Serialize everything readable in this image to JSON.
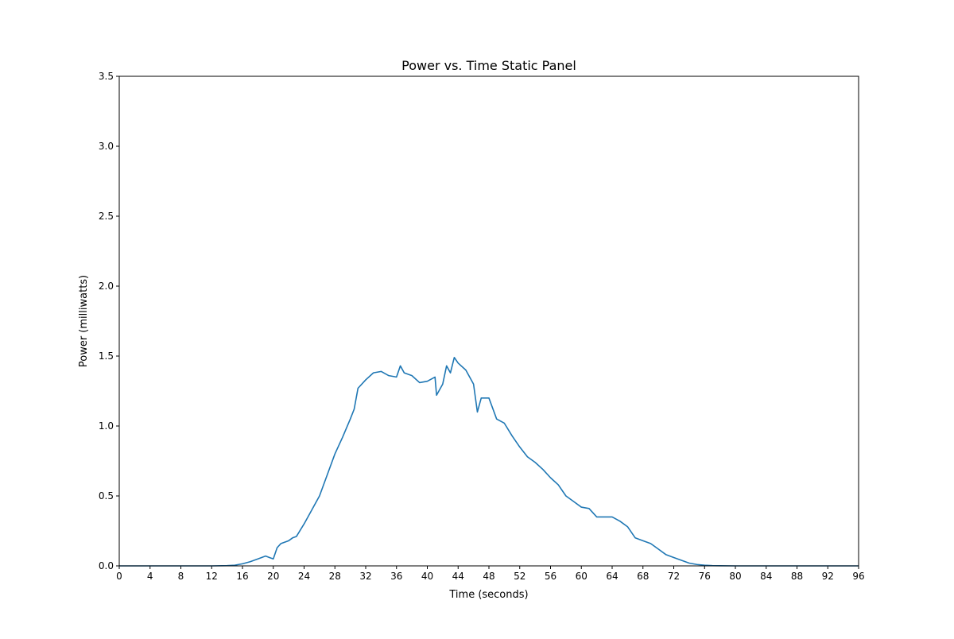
{
  "chart_data": {
    "type": "line",
    "title": "Power vs. Time Static Panel",
    "xlabel": "Time (seconds)",
    "ylabel": "Power (milliwatts)",
    "xlim": [
      0,
      96
    ],
    "ylim": [
      0,
      3.5
    ],
    "xticks": [
      0,
      4,
      8,
      12,
      16,
      20,
      24,
      28,
      32,
      36,
      40,
      44,
      48,
      52,
      56,
      60,
      64,
      68,
      72,
      76,
      80,
      84,
      88,
      92,
      96
    ],
    "xtick_labels": [
      "0",
      "4",
      "8",
      "12",
      "16",
      "20",
      "24",
      "28",
      "32",
      "36",
      "40",
      "44",
      "48",
      "52",
      "56",
      "60",
      "64",
      "68",
      "72",
      "76",
      "80",
      "84",
      "88",
      "92",
      "96"
    ],
    "yticks": [
      0.0,
      0.5,
      1.0,
      1.5,
      2.0,
      2.5,
      3.0,
      3.5
    ],
    "ytick_labels": [
      "0.0",
      "0.5",
      "1.0",
      "1.5",
      "2.0",
      "2.5",
      "3.0",
      "3.5"
    ],
    "grid": false,
    "legend": "none",
    "series": [
      {
        "color": "#1f77b4",
        "x": [
          0,
          4,
          8,
          12,
          14,
          15,
          16,
          17,
          18,
          19,
          19.5,
          20,
          20.5,
          21,
          22,
          22.5,
          23,
          24,
          25,
          26,
          27,
          28,
          29,
          30,
          30.5,
          31,
          32,
          33,
          34,
          35,
          36,
          36.5,
          37,
          38,
          39,
          40,
          41,
          41.2,
          42,
          42.5,
          43,
          43.5,
          44,
          45,
          46,
          46.5,
          47,
          48,
          49,
          50,
          51,
          52,
          53,
          54,
          55,
          56,
          57,
          58,
          59,
          60,
          61,
          62,
          63,
          64,
          65,
          66,
          67,
          68,
          69,
          70,
          71,
          72,
          73,
          74,
          75,
          76,
          77,
          78,
          80,
          84,
          88,
          92,
          96
        ],
        "y": [
          0,
          0,
          0,
          0,
          0.002,
          0.005,
          0.015,
          0.03,
          0.05,
          0.07,
          0.06,
          0.05,
          0.13,
          0.16,
          0.18,
          0.2,
          0.21,
          0.3,
          0.4,
          0.5,
          0.65,
          0.8,
          0.92,
          1.05,
          1.12,
          1.27,
          1.33,
          1.38,
          1.39,
          1.36,
          1.35,
          1.43,
          1.38,
          1.36,
          1.31,
          1.32,
          1.35,
          1.22,
          1.3,
          1.43,
          1.38,
          1.49,
          1.45,
          1.4,
          1.3,
          1.1,
          1.2,
          1.2,
          1.05,
          1.02,
          0.93,
          0.85,
          0.78,
          0.74,
          0.69,
          0.63,
          0.58,
          0.5,
          0.46,
          0.42,
          0.41,
          0.35,
          0.35,
          0.35,
          0.32,
          0.28,
          0.2,
          0.18,
          0.16,
          0.12,
          0.08,
          0.06,
          0.04,
          0.02,
          0.01,
          0.005,
          0.002,
          0.001,
          0,
          0,
          0,
          0,
          0
        ]
      }
    ]
  }
}
